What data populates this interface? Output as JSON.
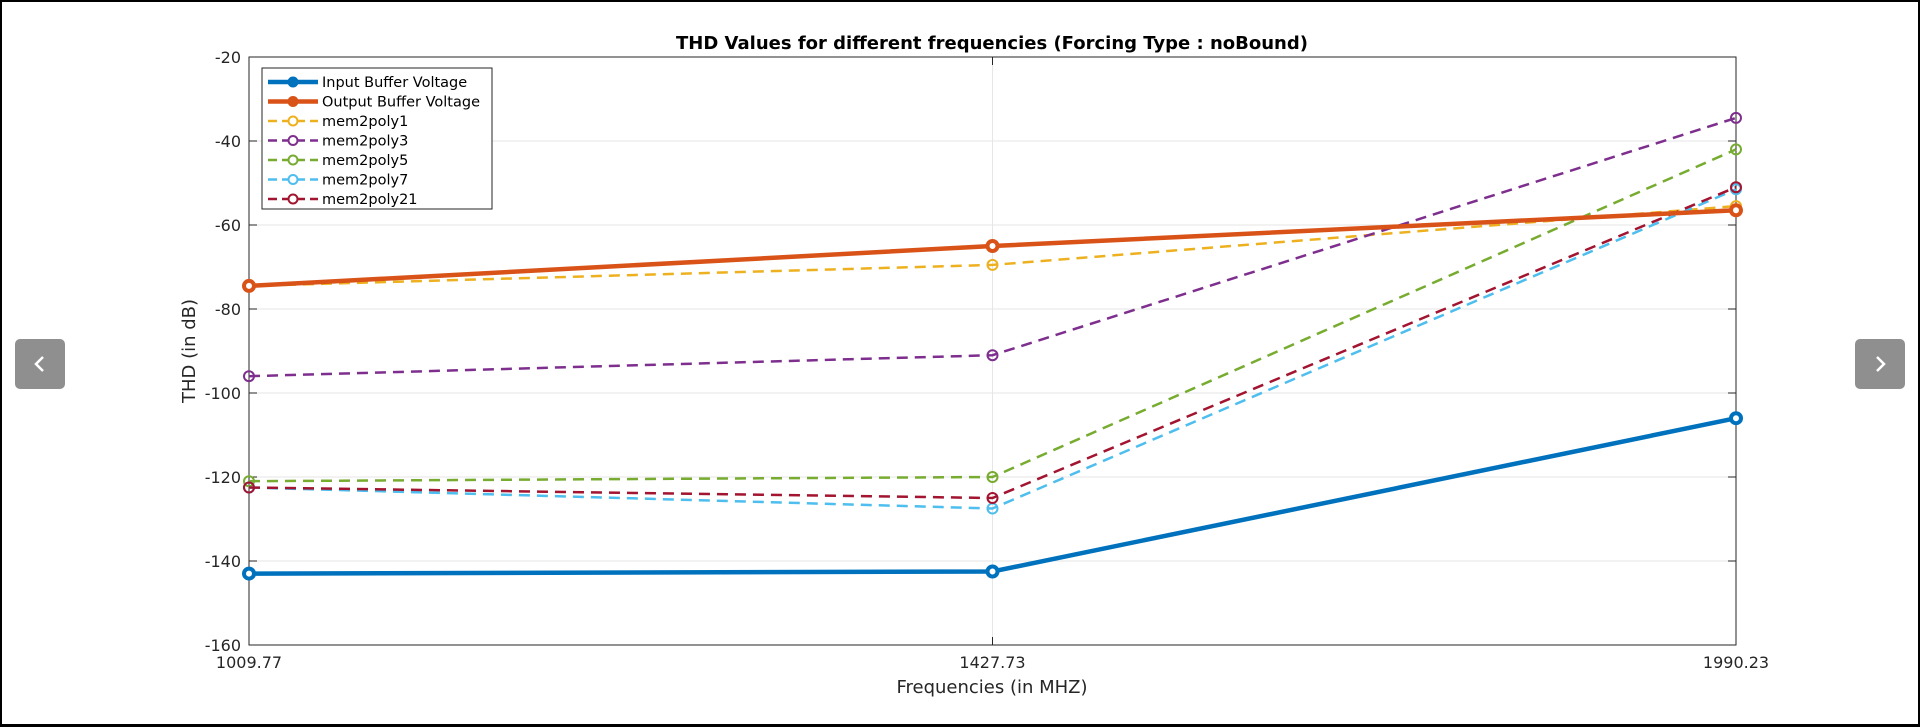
{
  "chart_data": {
    "type": "line",
    "title": "THD Values for different frequencies (Forcing Type : noBound)",
    "xlabel": "Frequencies (in MHZ)",
    "ylabel": "THD (in dB)",
    "x": [
      "1009.77",
      "1427.73",
      "1990.23"
    ],
    "ylim": [
      -160,
      -20
    ],
    "yticks": [
      -20,
      -40,
      -60,
      -80,
      -100,
      -120,
      -140,
      -160
    ],
    "grid": true,
    "legend_position": "top-left",
    "series": [
      {
        "name": "Input Buffer Voltage",
        "values": [
          -143,
          -142.5,
          -106
        ],
        "color": "#0072BD",
        "style": "solid"
      },
      {
        "name": "Output Buffer Voltage",
        "values": [
          -74.5,
          -65,
          -56.5
        ],
        "color": "#D95319",
        "style": "solid"
      },
      {
        "name": "mem2poly1",
        "values": [
          -74.5,
          -69.5,
          -55.5
        ],
        "color": "#EDB120",
        "style": "dashed"
      },
      {
        "name": "mem2poly3",
        "values": [
          -96,
          -91,
          -34.5
        ],
        "color": "#7E2F8E",
        "style": "dashed"
      },
      {
        "name": "mem2poly5",
        "values": [
          -121,
          -120,
          -42
        ],
        "color": "#77AC30",
        "style": "dashed"
      },
      {
        "name": "mem2poly7",
        "values": [
          -122.5,
          -127.5,
          -51.5
        ],
        "color": "#4DBEEE",
        "style": "dashed"
      },
      {
        "name": "mem2poly21",
        "values": [
          -122.5,
          -125,
          -51
        ],
        "color": "#A2142F",
        "style": "dashed"
      }
    ]
  },
  "navigation": {
    "prev_icon": "chevron-left-icon",
    "next_icon": "chevron-right-icon"
  }
}
